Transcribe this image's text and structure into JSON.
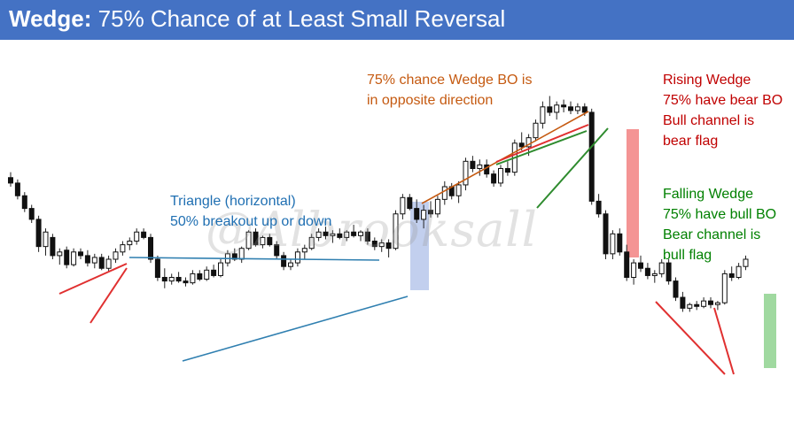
{
  "title": {
    "bold": "Wedge:",
    "rest": " 75% Chance of at Least Small Reversal"
  },
  "watermark": "@Albrooksall",
  "colors": {
    "title_bg": "#4472c4",
    "blue": "#1f6fb2",
    "orange": "#c55a11",
    "red_text": "#c00000",
    "green_text": "#008000",
    "red_line": "#e03030",
    "green_line": "#2e8b2e",
    "triangle_line": "#2f7fb0",
    "blue_box": "#aebfe8",
    "red_box": "#f07070",
    "green_box": "#88d088"
  },
  "annotations": {
    "triangle": [
      "Triangle (horizontal)",
      "50% breakout up or down"
    ],
    "wedge_bo": [
      "75% chance Wedge BO is",
      "in opposite direction"
    ],
    "rising": [
      "Rising Wedge",
      "75% have bear BO",
      "Bull channel is",
      "bear flag"
    ],
    "falling": [
      "Falling Wedge",
      "75% have bull BO",
      "Bear channel is",
      "bull flag"
    ]
  },
  "chart_data": {
    "type": "candlestick",
    "title": "Wedge: 75% Chance of at Least Small Reversal",
    "price_range": [
      0,
      100
    ],
    "grid": false,
    "candles": [
      {
        "o": 85,
        "h": 88,
        "l": 80,
        "c": 82
      },
      {
        "o": 82,
        "h": 84,
        "l": 73,
        "c": 75
      },
      {
        "o": 75,
        "h": 77,
        "l": 66,
        "c": 68
      },
      {
        "o": 68,
        "h": 70,
        "l": 60,
        "c": 62
      },
      {
        "o": 62,
        "h": 64,
        "l": 44,
        "c": 47
      },
      {
        "o": 47,
        "h": 57,
        "l": 42,
        "c": 55
      },
      {
        "o": 52,
        "h": 54,
        "l": 40,
        "c": 42
      },
      {
        "o": 42,
        "h": 46,
        "l": 37,
        "c": 44
      },
      {
        "o": 45,
        "h": 47,
        "l": 35,
        "c": 37
      },
      {
        "o": 37,
        "h": 46,
        "l": 36,
        "c": 44
      },
      {
        "o": 44,
        "h": 46,
        "l": 40,
        "c": 42
      },
      {
        "o": 42,
        "h": 45,
        "l": 36,
        "c": 38
      },
      {
        "o": 38,
        "h": 43,
        "l": 35,
        "c": 41
      },
      {
        "o": 41,
        "h": 43,
        "l": 34,
        "c": 35
      },
      {
        "o": 35,
        "h": 42,
        "l": 33,
        "c": 40
      },
      {
        "o": 40,
        "h": 46,
        "l": 38,
        "c": 44
      },
      {
        "o": 44,
        "h": 50,
        "l": 42,
        "c": 48
      },
      {
        "o": 48,
        "h": 52,
        "l": 45,
        "c": 50
      },
      {
        "o": 50,
        "h": 57,
        "l": 48,
        "c": 55
      },
      {
        "o": 55,
        "h": 57,
        "l": 51,
        "c": 52
      },
      {
        "o": 52,
        "h": 54,
        "l": 38,
        "c": 40
      },
      {
        "o": 40,
        "h": 42,
        "l": 28,
        "c": 30
      },
      {
        "o": 30,
        "h": 35,
        "l": 24,
        "c": 28
      },
      {
        "o": 28,
        "h": 32,
        "l": 26,
        "c": 30
      },
      {
        "o": 30,
        "h": 33,
        "l": 27,
        "c": 28
      },
      {
        "o": 28,
        "h": 30,
        "l": 25,
        "c": 27
      },
      {
        "o": 27,
        "h": 34,
        "l": 26,
        "c": 32
      },
      {
        "o": 32,
        "h": 34,
        "l": 28,
        "c": 29
      },
      {
        "o": 29,
        "h": 36,
        "l": 28,
        "c": 34
      },
      {
        "o": 34,
        "h": 37,
        "l": 30,
        "c": 31
      },
      {
        "o": 31,
        "h": 40,
        "l": 30,
        "c": 38
      },
      {
        "o": 38,
        "h": 45,
        "l": 36,
        "c": 43
      },
      {
        "o": 43,
        "h": 46,
        "l": 39,
        "c": 40
      },
      {
        "o": 40,
        "h": 47,
        "l": 38,
        "c": 46
      },
      {
        "o": 46,
        "h": 56,
        "l": 45,
        "c": 55
      },
      {
        "o": 55,
        "h": 57,
        "l": 47,
        "c": 48
      },
      {
        "o": 48,
        "h": 53,
        "l": 46,
        "c": 52
      },
      {
        "o": 52,
        "h": 54,
        "l": 47,
        "c": 48
      },
      {
        "o": 48,
        "h": 50,
        "l": 40,
        "c": 42
      },
      {
        "o": 42,
        "h": 44,
        "l": 34,
        "c": 36
      },
      {
        "o": 36,
        "h": 40,
        "l": 34,
        "c": 38
      },
      {
        "o": 38,
        "h": 46,
        "l": 36,
        "c": 44
      },
      {
        "o": 44,
        "h": 48,
        "l": 40,
        "c": 46
      },
      {
        "o": 46,
        "h": 54,
        "l": 45,
        "c": 52
      },
      {
        "o": 52,
        "h": 57,
        "l": 50,
        "c": 55
      },
      {
        "o": 55,
        "h": 58,
        "l": 51,
        "c": 53
      },
      {
        "o": 53,
        "h": 56,
        "l": 49,
        "c": 54
      },
      {
        "o": 54,
        "h": 57,
        "l": 51,
        "c": 52
      },
      {
        "o": 52,
        "h": 56,
        "l": 50,
        "c": 55
      },
      {
        "o": 55,
        "h": 59,
        "l": 52,
        "c": 53
      },
      {
        "o": 53,
        "h": 56,
        "l": 50,
        "c": 55
      },
      {
        "o": 55,
        "h": 57,
        "l": 48,
        "c": 50
      },
      {
        "o": 50,
        "h": 52,
        "l": 45,
        "c": 47
      },
      {
        "o": 47,
        "h": 51,
        "l": 44,
        "c": 49
      },
      {
        "o": 49,
        "h": 51,
        "l": 41,
        "c": 46
      },
      {
        "o": 46,
        "h": 67,
        "l": 45,
        "c": 65
      },
      {
        "o": 65,
        "h": 76,
        "l": 62,
        "c": 74
      },
      {
        "o": 74,
        "h": 76,
        "l": 67,
        "c": 68
      },
      {
        "o": 68,
        "h": 73,
        "l": 60,
        "c": 62
      },
      {
        "o": 62,
        "h": 70,
        "l": 57,
        "c": 67
      },
      {
        "o": 67,
        "h": 72,
        "l": 63,
        "c": 65
      },
      {
        "o": 65,
        "h": 75,
        "l": 63,
        "c": 73
      },
      {
        "o": 73,
        "h": 83,
        "l": 70,
        "c": 80
      },
      {
        "o": 80,
        "h": 82,
        "l": 73,
        "c": 75
      },
      {
        "o": 75,
        "h": 83,
        "l": 71,
        "c": 81
      },
      {
        "o": 81,
        "h": 96,
        "l": 78,
        "c": 94
      },
      {
        "o": 94,
        "h": 97,
        "l": 88,
        "c": 90
      },
      {
        "o": 90,
        "h": 95,
        "l": 86,
        "c": 92
      },
      {
        "o": 92,
        "h": 95,
        "l": 85,
        "c": 87
      },
      {
        "o": 87,
        "h": 89,
        "l": 80,
        "c": 82
      },
      {
        "o": 82,
        "h": 92,
        "l": 80,
        "c": 90
      },
      {
        "o": 90,
        "h": 94,
        "l": 86,
        "c": 88
      },
      {
        "o": 88,
        "h": 106,
        "l": 86,
        "c": 104
      },
      {
        "o": 104,
        "h": 110,
        "l": 100,
        "c": 102
      },
      {
        "o": 102,
        "h": 109,
        "l": 97,
        "c": 107
      },
      {
        "o": 107,
        "h": 117,
        "l": 105,
        "c": 115
      },
      {
        "o": 115,
        "h": 127,
        "l": 112,
        "c": 124
      },
      {
        "o": 124,
        "h": 130,
        "l": 119,
        "c": 121
      },
      {
        "o": 121,
        "h": 127,
        "l": 117,
        "c": 125
      },
      {
        "o": 125,
        "h": 128,
        "l": 121,
        "c": 124
      },
      {
        "o": 124,
        "h": 127,
        "l": 120,
        "c": 122
      },
      {
        "o": 122,
        "h": 126,
        "l": 120,
        "c": 124
      },
      {
        "o": 124,
        "h": 126,
        "l": 119,
        "c": 121
      },
      {
        "o": 121,
        "h": 123,
        "l": 70,
        "c": 72
      },
      {
        "o": 72,
        "h": 76,
        "l": 63,
        "c": 65
      },
      {
        "o": 65,
        "h": 67,
        "l": 40,
        "c": 43
      },
      {
        "o": 43,
        "h": 56,
        "l": 40,
        "c": 54
      },
      {
        "o": 54,
        "h": 57,
        "l": 42,
        "c": 44
      },
      {
        "o": 44,
        "h": 48,
        "l": 28,
        "c": 30
      },
      {
        "o": 30,
        "h": 40,
        "l": 26,
        "c": 38
      },
      {
        "o": 38,
        "h": 42,
        "l": 33,
        "c": 35
      },
      {
        "o": 35,
        "h": 38,
        "l": 29,
        "c": 31
      },
      {
        "o": 31,
        "h": 34,
        "l": 27,
        "c": 32
      },
      {
        "o": 32,
        "h": 40,
        "l": 30,
        "c": 38
      },
      {
        "o": 38,
        "h": 40,
        "l": 26,
        "c": 28
      },
      {
        "o": 28,
        "h": 30,
        "l": 17,
        "c": 19
      },
      {
        "o": 19,
        "h": 22,
        "l": 11,
        "c": 13
      },
      {
        "o": 13,
        "h": 16,
        "l": 11,
        "c": 15
      },
      {
        "o": 15,
        "h": 17,
        "l": 12,
        "c": 14
      },
      {
        "o": 14,
        "h": 19,
        "l": 13,
        "c": 17
      },
      {
        "o": 17,
        "h": 19,
        "l": 13,
        "c": 15
      },
      {
        "o": 15,
        "h": 17,
        "l": 12,
        "c": 16
      },
      {
        "o": 16,
        "h": 34,
        "l": 15,
        "c": 32
      },
      {
        "o": 32,
        "h": 36,
        "l": 28,
        "c": 30
      },
      {
        "o": 30,
        "h": 38,
        "l": 29,
        "c": 36
      },
      {
        "o": 36,
        "h": 42,
        "l": 34,
        "c": 40
      }
    ]
  }
}
